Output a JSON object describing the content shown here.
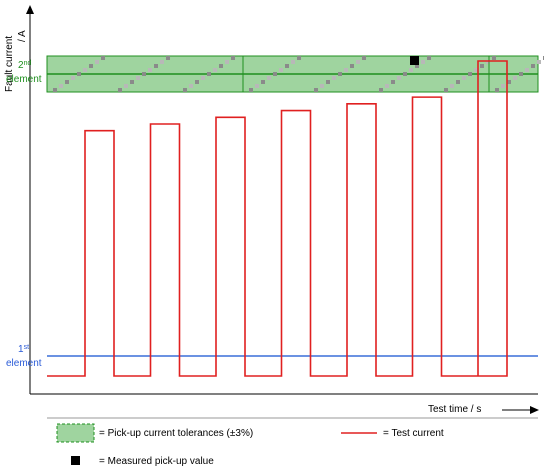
{
  "axis": {
    "y_label_main": "Fault current",
    "y_label_unit": "/ A",
    "x_label": "Test time / s"
  },
  "markers": {
    "element2_num": "2",
    "element2_sup": "nd",
    "element2_word": "element",
    "element1_num": "1",
    "element1_sup": "st",
    "element1_word": "element"
  },
  "legend": {
    "tolerance_label": "= Pick-up current tolerances  (±3%)",
    "test_current_label": "= Test current",
    "measured_label": "= Measured pick-up value"
  },
  "colors": {
    "test_current": "#e02020",
    "element1_line": "#3a6fd8",
    "element2_line": "#1f8f1f",
    "tolerance_band": "#9fd49f",
    "marker": "#000000"
  },
  "chart_data": {
    "type": "line",
    "description_levels": {
      "baseline": 0,
      "element1": 0.05,
      "element2": 0.9,
      "tolerance_band": [
        0.85,
        0.95
      ]
    },
    "test_current_pulses": [
      0.73,
      0.75,
      0.77,
      0.79,
      0.81,
      0.83,
      0.85
    ],
    "measured_pickup_pulse_index": 6
  }
}
